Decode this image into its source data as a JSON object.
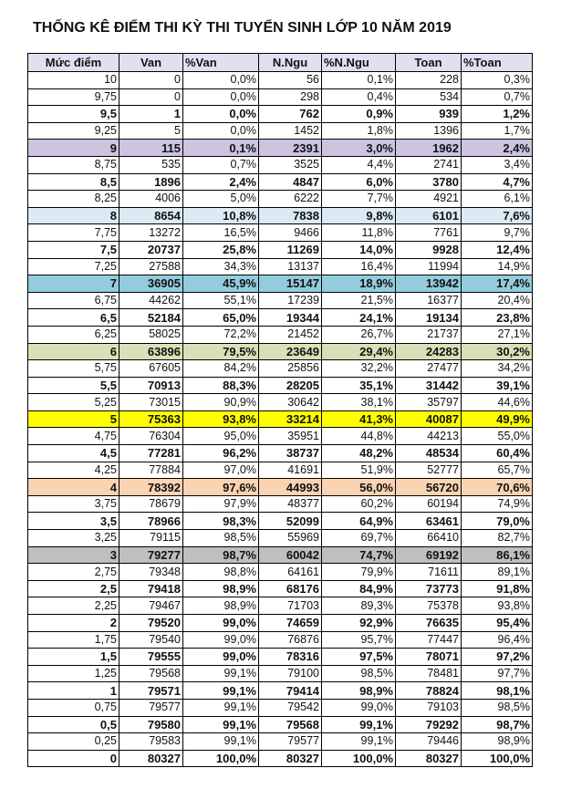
{
  "title": "THỐNG KÊ ĐIỂM THI KỲ THI TUYỂN SINH LỚP 10 NĂM 2019",
  "header_bg": "#e3dff0",
  "columns": [
    {
      "label": "Mức điểm",
      "align": "center"
    },
    {
      "label": "Van",
      "align": "center"
    },
    {
      "label": "%Van",
      "align": "left"
    },
    {
      "label": "N.Ngu",
      "align": "center"
    },
    {
      "label": "%N.Ngu",
      "align": "left"
    },
    {
      "label": "Toan",
      "align": "center"
    },
    {
      "label": "%Toan",
      "align": "left"
    }
  ],
  "rows": [
    {
      "cells": [
        "10",
        "0",
        "0,0%",
        "56",
        "0,1%",
        "228",
        "0,3%"
      ],
      "bold": false
    },
    {
      "cells": [
        "9,75",
        "0",
        "0,0%",
        "298",
        "0,4%",
        "534",
        "0,7%"
      ],
      "bold": false
    },
    {
      "cells": [
        "9,5",
        "1",
        "0,0%",
        "762",
        "0,9%",
        "939",
        "1,2%"
      ],
      "bold": true
    },
    {
      "cells": [
        "9,25",
        "5",
        "0,0%",
        "1452",
        "1,8%",
        "1396",
        "1,7%"
      ],
      "bold": false
    },
    {
      "cells": [
        "9",
        "115",
        "0,1%",
        "2391",
        "3,0%",
        "1962",
        "2,4%"
      ],
      "bold": true,
      "highlight": "#cdc4e0"
    },
    {
      "cells": [
        "8,75",
        "535",
        "0,7%",
        "3525",
        "4,4%",
        "2741",
        "3,4%"
      ],
      "bold": false
    },
    {
      "cells": [
        "8,5",
        "1896",
        "2,4%",
        "4847",
        "6,0%",
        "3780",
        "4,7%"
      ],
      "bold": true
    },
    {
      "cells": [
        "8,25",
        "4006",
        "5,0%",
        "6222",
        "7,7%",
        "4921",
        "6,1%"
      ],
      "bold": false
    },
    {
      "cells": [
        "8",
        "8654",
        "10,8%",
        "7838",
        "9,8%",
        "6101",
        "7,6%"
      ],
      "bold": true,
      "highlight": "#dceaf4"
    },
    {
      "cells": [
        "7,75",
        "13272",
        "16,5%",
        "9466",
        "11,8%",
        "7761",
        "9,7%"
      ],
      "bold": false
    },
    {
      "cells": [
        "7,5",
        "20737",
        "25,8%",
        "11269",
        "14,0%",
        "9928",
        "12,4%"
      ],
      "bold": true
    },
    {
      "cells": [
        "7,25",
        "27588",
        "34,3%",
        "13137",
        "16,4%",
        "11994",
        "14,9%"
      ],
      "bold": false
    },
    {
      "cells": [
        "7",
        "36905",
        "45,9%",
        "15147",
        "18,9%",
        "13942",
        "17,4%"
      ],
      "bold": true,
      "highlight": "#93ccdc"
    },
    {
      "cells": [
        "6,75",
        "44262",
        "55,1%",
        "17239",
        "21,5%",
        "16377",
        "20,4%"
      ],
      "bold": false
    },
    {
      "cells": [
        "6,5",
        "52184",
        "65,0%",
        "19344",
        "24,1%",
        "19134",
        "23,8%"
      ],
      "bold": true
    },
    {
      "cells": [
        "6,25",
        "58025",
        "72,2%",
        "21452",
        "26,7%",
        "21737",
        "27,1%"
      ],
      "bold": false
    },
    {
      "cells": [
        "6",
        "63896",
        "79,5%",
        "23649",
        "29,4%",
        "24283",
        "30,2%"
      ],
      "bold": true,
      "highlight": "#d6e1b7"
    },
    {
      "cells": [
        "5,75",
        "67605",
        "84,2%",
        "25856",
        "32,2%",
        "27477",
        "34,2%"
      ],
      "bold": false
    },
    {
      "cells": [
        "5,5",
        "70913",
        "88,3%",
        "28205",
        "35,1%",
        "31442",
        "39,1%"
      ],
      "bold": true
    },
    {
      "cells": [
        "5,25",
        "73015",
        "90,9%",
        "30642",
        "38,1%",
        "35797",
        "44,6%"
      ],
      "bold": false
    },
    {
      "cells": [
        "5",
        "75363",
        "93,8%",
        "33214",
        "41,3%",
        "40087",
        "49,9%"
      ],
      "bold": true,
      "highlight": "#ffff00"
    },
    {
      "cells": [
        "4,75",
        "76304",
        "95,0%",
        "35951",
        "44,8%",
        "44213",
        "55,0%"
      ],
      "bold": false
    },
    {
      "cells": [
        "4,5",
        "77281",
        "96,2%",
        "38737",
        "48,2%",
        "48534",
        "60,4%"
      ],
      "bold": true
    },
    {
      "cells": [
        "4,25",
        "77884",
        "97,0%",
        "41691",
        "51,9%",
        "52777",
        "65,7%"
      ],
      "bold": false
    },
    {
      "cells": [
        "4",
        "78392",
        "97,6%",
        "44993",
        "56,0%",
        "56720",
        "70,6%"
      ],
      "bold": true,
      "highlight": "#fad3b3"
    },
    {
      "cells": [
        "3,75",
        "78679",
        "97,9%",
        "48377",
        "60,2%",
        "60194",
        "74,9%"
      ],
      "bold": false
    },
    {
      "cells": [
        "3,5",
        "78966",
        "98,3%",
        "52099",
        "64,9%",
        "63461",
        "79,0%"
      ],
      "bold": true
    },
    {
      "cells": [
        "3,25",
        "79115",
        "98,5%",
        "55969",
        "69,7%",
        "66410",
        "82,7%"
      ],
      "bold": false
    },
    {
      "cells": [
        "3",
        "79277",
        "98,7%",
        "60042",
        "74,7%",
        "69192",
        "86,1%"
      ],
      "bold": true,
      "highlight": "#bfbfbf"
    },
    {
      "cells": [
        "2,75",
        "79348",
        "98,8%",
        "64161",
        "79,9%",
        "71611",
        "89,1%"
      ],
      "bold": false
    },
    {
      "cells": [
        "2,5",
        "79418",
        "98,9%",
        "68176",
        "84,9%",
        "73773",
        "91,8%"
      ],
      "bold": true
    },
    {
      "cells": [
        "2,25",
        "79467",
        "98,9%",
        "71703",
        "89,3%",
        "75378",
        "93,8%"
      ],
      "bold": false
    },
    {
      "cells": [
        "2",
        "79520",
        "99,0%",
        "74659",
        "92,9%",
        "76635",
        "95,4%"
      ],
      "bold": true
    },
    {
      "cells": [
        "1,75",
        "79540",
        "99,0%",
        "76876",
        "95,7%",
        "77447",
        "96,4%"
      ],
      "bold": false
    },
    {
      "cells": [
        "1,5",
        "79555",
        "99,0%",
        "78316",
        "97,5%",
        "78071",
        "97,2%"
      ],
      "bold": true
    },
    {
      "cells": [
        "1,25",
        "79568",
        "99,1%",
        "79100",
        "98,5%",
        "78481",
        "97,7%"
      ],
      "bold": false
    },
    {
      "cells": [
        "1",
        "79571",
        "99,1%",
        "79414",
        "98,9%",
        "78824",
        "98,1%"
      ],
      "bold": true
    },
    {
      "cells": [
        "0,75",
        "79577",
        "99,1%",
        "79542",
        "99,0%",
        "79103",
        "98,5%"
      ],
      "bold": false
    },
    {
      "cells": [
        "0,5",
        "79580",
        "99,1%",
        "79568",
        "99,1%",
        "79292",
        "98,7%"
      ],
      "bold": true
    },
    {
      "cells": [
        "0,25",
        "79583",
        "99,1%",
        "79577",
        "99,1%",
        "79446",
        "98,9%"
      ],
      "bold": false
    },
    {
      "cells": [
        "0",
        "80327",
        "100,0%",
        "80327",
        "100,0%",
        "80327",
        "100,0%"
      ],
      "bold": true
    }
  ]
}
